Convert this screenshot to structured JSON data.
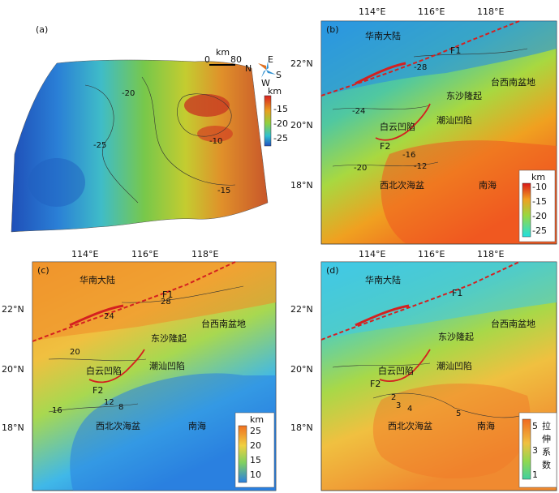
{
  "panel_a": {
    "label": "(a)",
    "scale": {
      "zero": "0",
      "end": "80",
      "unit": "km"
    },
    "compass": {
      "n": "N",
      "e": "E",
      "s": "S",
      "w": "W"
    },
    "contours": [
      "-20",
      "-25",
      "-10",
      "-15"
    ],
    "colorbar": {
      "unit": "km",
      "ticks": [
        "-15",
        "-20",
        "-25"
      ]
    }
  },
  "panel_b": {
    "label": "(b)",
    "x_ticks": [
      "114°E",
      "116°E",
      "118°E"
    ],
    "y_ticks": [
      "22°N",
      "20°N",
      "18°N"
    ],
    "places": {
      "mainland": "华南大陆",
      "dongsha": "东沙隆起",
      "taixinan": "台西南盆地",
      "baiyun": "白云凹陷",
      "chaoshan": "潮汕凹陷",
      "xibeici": "西北次海盆",
      "nanhai": "南海",
      "f1": "F1",
      "f2": "F2"
    },
    "contours": [
      "-28",
      "-24",
      "-20",
      "-16",
      "-12"
    ],
    "colorbar": {
      "unit": "km",
      "ticks": [
        "-10",
        "-15",
        "-20",
        "-25"
      ]
    }
  },
  "panel_c": {
    "label": "(c)",
    "x_ticks": [
      "114°E",
      "116°E",
      "118°E"
    ],
    "y_ticks": [
      "22°N",
      "20°N",
      "18°N"
    ],
    "places": {
      "mainland": "华南大陆",
      "dongsha": "东沙隆起",
      "taixinan": "台西南盆地",
      "baiyun": "白云凹陷",
      "chaoshan": "潮汕凹陷",
      "xibeici": "西北次海盆",
      "nanhai": "南海",
      "f1": "F1",
      "f2": "F2"
    },
    "contours": [
      "28",
      "24",
      "20",
      "16",
      "12",
      "8"
    ],
    "colorbar": {
      "unit": "km",
      "ticks": [
        "25",
        "20",
        "15",
        "10"
      ]
    }
  },
  "panel_d": {
    "label": "(d)",
    "x_ticks": [
      "114°E",
      "116°E",
      "118°E"
    ],
    "y_ticks": [
      "22°N",
      "20°N",
      "18°N"
    ],
    "places": {
      "mainland": "华南大陆",
      "dongsha": "东沙隆起",
      "taixinan": "台西南盆地",
      "baiyun": "白云凹陷",
      "chaoshan": "潮汕凹陷",
      "xibeici": "西北次海盆",
      "nanhai": "南海",
      "f1": "F1",
      "f2": "F2"
    },
    "contours": [
      "2",
      "3",
      "4",
      "5"
    ],
    "colorbar": {
      "title_chars": [
        "拉",
        "伸",
        "系",
        "数"
      ],
      "ticks": [
        "5",
        "3",
        "1"
      ]
    }
  },
  "colors": {
    "fault": "#d42020",
    "contour": "#333333"
  }
}
